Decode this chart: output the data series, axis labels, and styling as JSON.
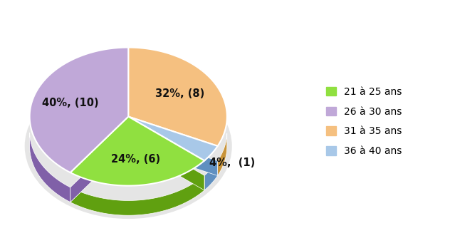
{
  "plot_sizes": [
    32,
    4,
    24,
    40
  ],
  "plot_colors": [
    "#f5c080",
    "#a8c8e8",
    "#90e040",
    "#c0a8d8"
  ],
  "plot_colors_dark": [
    "#c8943a",
    "#6090c0",
    "#60a010",
    "#8060a8"
  ],
  "plot_labels": [
    "32%, (8)",
    "4%,  (1)",
    "24%, (6)",
    "40%, (10)"
  ],
  "legend_colors": [
    "#90e040",
    "#c0a8d8",
    "#f5c080",
    "#a8c8e8"
  ],
  "legend_labels": [
    "21 à 25 ans",
    "26 à 30 ans",
    "31 à 35 ans",
    "36 à 40 ans"
  ],
  "startangle": 90,
  "background_color": "#ffffff",
  "label_fontsize": 10.5,
  "legend_fontsize": 10
}
